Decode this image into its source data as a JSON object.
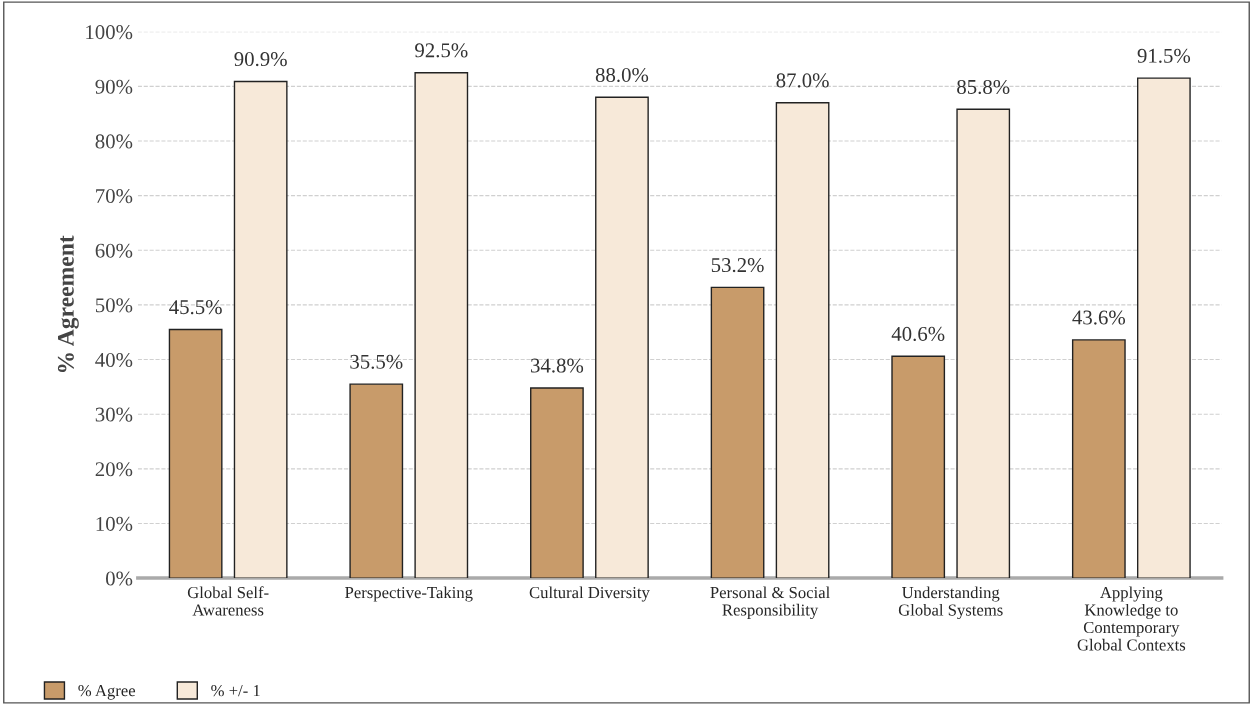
{
  "chart_data": {
    "type": "bar",
    "ylabel": "% Agreement",
    "categories": [
      "Global Self-\nAwareness",
      "Perspective-Taking",
      "Cultural Diversity",
      "Personal & Social\nResponsibility",
      "Understanding\nGlobal Systems",
      "Applying\nKnowledge to\nContemporary\nGlobal Contexts"
    ],
    "series": [
      {
        "name": "% Agree",
        "color": "#c89b6a",
        "values": [
          45.5,
          35.5,
          34.8,
          53.2,
          40.6,
          43.6
        ],
        "value_labels": [
          "45.5%",
          "35.5%",
          "34.8%",
          "53.2%",
          "40.6%",
          "43.6%"
        ]
      },
      {
        "name": "% +/- 1",
        "color": "#f7e9d9",
        "values": [
          90.9,
          92.5,
          88.0,
          87.0,
          85.8,
          91.5
        ],
        "value_labels": [
          "90.9%",
          "92.5%",
          "88.0%",
          "87.0%",
          "85.8%",
          "91.5%"
        ]
      }
    ],
    "ylim": [
      0,
      100
    ],
    "yticks": [
      {
        "value": 0,
        "label": "0%"
      },
      {
        "value": 10,
        "label": "10%"
      },
      {
        "value": 20,
        "label": "20%"
      },
      {
        "value": 30,
        "label": "30%"
      },
      {
        "value": 40,
        "label": "40%"
      },
      {
        "value": 50,
        "label": "50%"
      },
      {
        "value": 60,
        "label": "60%"
      },
      {
        "value": 70,
        "label": "70%"
      },
      {
        "value": 80,
        "label": "80%"
      },
      {
        "value": 90,
        "label": "90%"
      },
      {
        "value": 100,
        "label": "100%"
      }
    ],
    "grid": "y",
    "legend": "bottom left"
  }
}
